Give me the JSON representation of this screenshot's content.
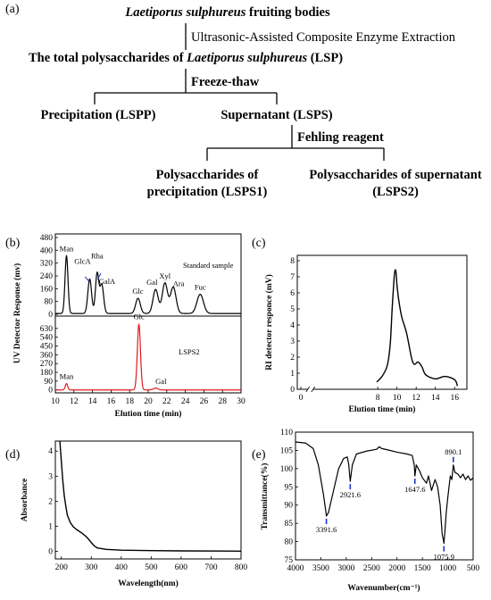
{
  "flowchart": {
    "panel_label": "(a)",
    "title_species": "Laetiporus sulphureus",
    "title_rest": " fruiting bodies",
    "extraction_step": "Ultrasonic-Assisted Composite Enzyme Extraction",
    "lsp_prefix": "The total polysaccharides of ",
    "lsp_species": "Laetiporus sulphureus",
    "lsp_suffix": " (LSP)",
    "freeze_step": "Freeze-thaw",
    "precipitation": "Precipitation (LSPP)",
    "supernatant": "Supernatant (LSPS)",
    "fehling_step": "Fehling reagent",
    "lsps1_line1": "Polysaccharides of",
    "lsps1_line2": "precipitation (LSPS1)",
    "lsps2_line1": "Polysaccharides of supernatant",
    "lsps2_line2": "(LSPS2)"
  },
  "chart_data": [
    {
      "panel": "(b)",
      "type": "line",
      "xlabel": "Elution time (min)",
      "ylabel": "UV Detector Response (mv)",
      "x_ticks": [
        10,
        12,
        14,
        16,
        18,
        20,
        22,
        24,
        26,
        28,
        30
      ],
      "xlim": [
        10,
        30
      ],
      "series": [
        {
          "name": "Standard sample",
          "color": "#000000",
          "ylim": [
            0,
            480
          ],
          "y_ticks": [
            0,
            80,
            160,
            240,
            320,
            400,
            480
          ],
          "baseline": 5,
          "peaks": [
            {
              "label": "Man",
              "x": 11.2,
              "y": 360,
              "w": 0.16
            },
            {
              "label": "GlcA",
              "x": 13.7,
              "y": 215,
              "w": 0.2
            },
            {
              "label": "Rha",
              "x": 14.5,
              "y": 250,
              "w": 0.18
            },
            {
              "label": "GalA",
              "x": 15.0,
              "y": 180,
              "w": 0.2
            },
            {
              "label": "Glc",
              "x": 18.9,
              "y": 95,
              "w": 0.25
            },
            {
              "label": "Gal",
              "x": 20.8,
              "y": 150,
              "w": 0.28
            },
            {
              "label": "Xyl",
              "x": 21.8,
              "y": 190,
              "w": 0.28
            },
            {
              "label": "Ara",
              "x": 22.7,
              "y": 165,
              "w": 0.3
            },
            {
              "label": "Fuc",
              "x": 25.6,
              "y": 120,
              "w": 0.35
            }
          ]
        },
        {
          "name": "LSPS2",
          "color": "#e0191f",
          "ylim": [
            -30,
            720
          ],
          "y_ticks": [
            0,
            90,
            180,
            270,
            360,
            450,
            540,
            630
          ],
          "baseline": 0,
          "peaks": [
            {
              "label": "Man",
              "x": 11.2,
              "y": 65,
              "w": 0.13
            },
            {
              "label": "Glc",
              "x": 19.0,
              "y": 670,
              "w": 0.17
            },
            {
              "label": "Gal",
              "x": 20.8,
              "y": 18,
              "w": 0.25
            }
          ]
        }
      ]
    },
    {
      "panel": "(c)",
      "type": "line",
      "xlabel": "Elution time (min)",
      "ylabel": "RI detector responce (mV)",
      "xlim": [
        0,
        17
      ],
      "x_ticks": [
        0,
        8,
        10,
        12,
        14,
        16
      ],
      "ylim": [
        0,
        8
      ],
      "y_ticks": [
        0,
        1,
        2,
        3,
        4,
        5,
        6,
        7,
        8
      ],
      "axis_break_x": 1,
      "x": [
        7.9,
        8.5,
        9.0,
        9.3,
        9.5,
        9.7,
        9.8,
        9.9,
        10.0,
        10.2,
        10.5,
        11.0,
        11.5,
        11.8,
        12.2,
        12.6,
        13.0,
        14.0,
        15.0,
        16.0,
        16.3
      ],
      "y": [
        0.45,
        0.85,
        1.5,
        2.8,
        5.0,
        6.9,
        7.4,
        7.3,
        6.5,
        5.5,
        4.5,
        3.5,
        2.0,
        1.55,
        1.7,
        1.4,
        0.9,
        0.65,
        0.8,
        0.6,
        0.2
      ]
    },
    {
      "panel": "(d)",
      "type": "line",
      "xlabel": "Wavelength(nm)",
      "ylabel": "Absorbance",
      "xlim": [
        180,
        800
      ],
      "x_ticks": [
        200,
        300,
        400,
        500,
        600,
        700,
        800
      ],
      "ylim": [
        -0.3,
        4.4
      ],
      "y_ticks": [
        0,
        1,
        2,
        3,
        4
      ],
      "x": [
        195,
        200,
        205,
        210,
        215,
        220,
        230,
        240,
        250,
        260,
        270,
        280,
        290,
        300,
        310,
        320,
        350,
        400,
        500,
        600,
        800
      ],
      "y": [
        4.6,
        3.6,
        2.8,
        2.2,
        1.8,
        1.45,
        1.15,
        0.98,
        0.88,
        0.8,
        0.72,
        0.62,
        0.5,
        0.35,
        0.22,
        0.14,
        0.08,
        0.05,
        0.03,
        0.02,
        0.01
      ]
    },
    {
      "panel": "(e)",
      "type": "line",
      "xlabel": "Wavenumber(cm⁻¹)",
      "ylabel": "Transmittance(%)",
      "xlim": [
        4000,
        500
      ],
      "x_ticks": [
        4000,
        3500,
        3000,
        2500,
        2000,
        1500,
        1000,
        500
      ],
      "ylim": [
        75,
        110
      ],
      "y_ticks": [
        75,
        80,
        85,
        90,
        95,
        100,
        105,
        110
      ],
      "x": [
        4000,
        3800,
        3650,
        3550,
        3450,
        3400,
        3391.6,
        3350,
        3250,
        3150,
        3050,
        2980,
        2950,
        2921.6,
        2880,
        2800,
        2600,
        2400,
        2350,
        2300,
        2200,
        2000,
        1800,
        1700,
        1660,
        1647.6,
        1620,
        1560,
        1500,
        1420,
        1380,
        1320,
        1250,
        1200,
        1150,
        1110,
        1080,
        1075.9,
        1050,
        1030,
        1000,
        950,
        920,
        890.1,
        860,
        800,
        750,
        700,
        650,
        600,
        550,
        500
      ],
      "y": [
        107.3,
        107,
        105.5,
        101,
        93,
        88,
        87,
        88,
        94,
        100,
        102.8,
        103.2,
        101,
        96.5,
        101,
        104,
        104.8,
        105.3,
        106,
        105.5,
        105.2,
        104.5,
        104,
        103.6,
        101,
        98,
        101,
        99.5,
        97.5,
        96,
        98,
        94,
        97,
        95,
        90,
        82,
        80,
        79.5,
        84,
        88,
        92,
        98,
        97,
        101,
        99,
        98.5,
        97.5,
        98.5,
        97,
        98,
        96.8,
        97.5
      ],
      "annotations": [
        {
          "text": "3391.6",
          "x": 3391.6,
          "y": 87
        },
        {
          "text": "2921.6",
          "x": 2921.6,
          "y": 96.5
        },
        {
          "text": "1647.6",
          "x": 1647.6,
          "y": 98
        },
        {
          "text": "1075.9",
          "x": 1075.9,
          "y": 79.5
        },
        {
          "text": "890.1",
          "x": 890.1,
          "y": 101
        }
      ]
    }
  ],
  "colors": {
    "red": "#e0191f",
    "blue": "#2233cc"
  }
}
